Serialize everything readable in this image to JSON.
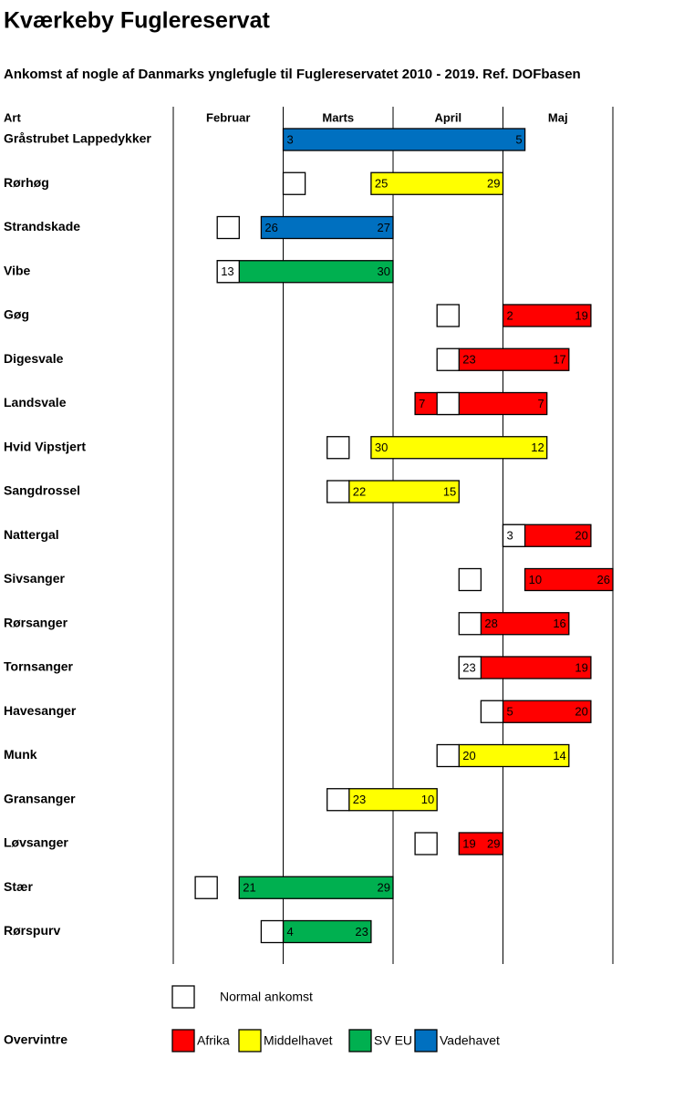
{
  "chart_data": {
    "type": "gantt",
    "title": "Kværkeby Fuglereservat",
    "subtitle": "Ankomst af nogle af Danmarks ynglefugle til Fuglereservatet 2010 - 2019. Ref. DOFbasen",
    "row_header": "Art",
    "months": [
      "Februar",
      "Marts",
      "April",
      "Maj"
    ],
    "normal_label": "Normal ankomst",
    "legend_title": "Overvintre",
    "legend": [
      {
        "name": "Afrika",
        "color": "#ff0000"
      },
      {
        "name": "Middelhavet",
        "color": "#ffff00"
      },
      {
        "name": "SV EU",
        "color": "#00b050"
      },
      {
        "name": "Vadehavet",
        "color": "#0070c0"
      }
    ],
    "rows": [
      {
        "name": "Gråstrubet Lappedykker",
        "region": "Vadehavet",
        "normal_month": null,
        "normal": null,
        "start_month": "Marts",
        "start": 3,
        "end_month": "Maj",
        "end": 5
      },
      {
        "name": "Rørhøg",
        "region": "Middelhavet",
        "normal_month": "Marts",
        "normal": 3,
        "start_month": "Marts",
        "start": 25,
        "end_month": "April",
        "end": 29
      },
      {
        "name": "Strandskade",
        "region": "Vadehavet",
        "normal_month": "Februar",
        "normal": 15,
        "start_month": "Februar",
        "start": 26,
        "end_month": "Marts",
        "end": 27
      },
      {
        "name": "Vibe",
        "region": "SV EU",
        "normal_month": "Februar",
        "normal": 13,
        "start_month": "Februar",
        "start": 13,
        "end_month": "Marts",
        "end": 30
      },
      {
        "name": "Gøg",
        "region": "Afrika",
        "normal_month": "April",
        "normal": 15,
        "start_month": "Maj",
        "start": 2,
        "end_month": "Maj",
        "end": 19
      },
      {
        "name": "Digesvale",
        "region": "Afrika",
        "normal_month": "April",
        "normal": 15,
        "start_month": "April",
        "start": 23,
        "end_month": "Maj",
        "end": 17
      },
      {
        "name": "Landsvale",
        "region": "Afrika",
        "normal_month": "April",
        "normal": 15,
        "start_month": "April",
        "start": 7,
        "end_month": "Maj",
        "end": 7
      },
      {
        "name": "Hvid Vipstjert",
        "region": "Middelhavet",
        "normal_month": "Marts",
        "normal": 15,
        "start_month": "Marts",
        "start": 30,
        "end_month": "Maj",
        "end": 12
      },
      {
        "name": "Sangdrossel",
        "region": "Middelhavet",
        "normal_month": "Marts",
        "normal": 15,
        "start_month": "Marts",
        "start": 22,
        "end_month": "April",
        "end": 15
      },
      {
        "name": "Nattergal",
        "region": "Afrika",
        "normal_month": "Maj",
        "normal": 3,
        "start_month": "Maj",
        "start": 3,
        "end_month": "Maj",
        "end": 20
      },
      {
        "name": "Sivsanger",
        "region": "Afrika",
        "normal_month": "April",
        "normal": 21,
        "start_month": "Maj",
        "start": 10,
        "end_month": "Maj",
        "end": 26
      },
      {
        "name": "Rørsanger",
        "region": "Afrika",
        "normal_month": "April",
        "normal": 21,
        "start_month": "April",
        "start": 28,
        "end_month": "Maj",
        "end": 16
      },
      {
        "name": "Tornsanger",
        "region": "Afrika",
        "normal_month": "April",
        "normal": 23,
        "start_month": "April",
        "start": 23,
        "end_month": "Maj",
        "end": 19
      },
      {
        "name": "Havesanger",
        "region": "Afrika",
        "normal_month": "April",
        "normal": 27,
        "start_month": "Maj",
        "start": 5,
        "end_month": "Maj",
        "end": 20
      },
      {
        "name": "Munk",
        "region": "Middelhavet",
        "normal_month": "April",
        "normal": 15,
        "start_month": "April",
        "start": 20,
        "end_month": "Maj",
        "end": 14
      },
      {
        "name": "Gransanger",
        "region": "Middelhavet",
        "normal_month": "Marts",
        "normal": 15,
        "start_month": "Marts",
        "start": 23,
        "end_month": "April",
        "end": 10
      },
      {
        "name": "Løvsanger",
        "region": "Afrika",
        "normal_month": "April",
        "normal": 9,
        "start_month": "April",
        "start": 19,
        "end_month": "April",
        "end": 29
      },
      {
        "name": "Stær",
        "region": "SV EU",
        "normal_month": "Februar",
        "normal": 9,
        "start_month": "Februar",
        "start": 21,
        "end_month": "Marts",
        "end": 29
      },
      {
        "name": "Rørspurv",
        "region": "SV EU",
        "normal_month": "Februar",
        "normal": 27,
        "start_month": "Marts",
        "start": 4,
        "end_month": "Marts",
        "end": 23
      }
    ]
  }
}
